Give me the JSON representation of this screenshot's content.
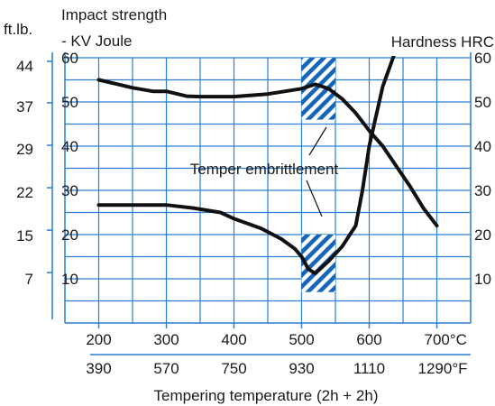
{
  "chart_data": {
    "type": "line",
    "xlabel": "Tempering temperature (2h + 2h)",
    "x_ticks_c": [
      "200",
      "300",
      "400",
      "500",
      "600",
      "700°C"
    ],
    "x_ticks_f": [
      "390",
      "570",
      "750",
      "930",
      "1110",
      "1290°F"
    ],
    "xlim_c": [
      150,
      750
    ],
    "left_axis": {
      "label_line1": "Impact strength",
      "label_line2": "- KV Joule",
      "unit_label": "ft.lb.",
      "ylim": [
        0,
        60
      ],
      "ticks_joule": [
        "60",
        "50",
        "40",
        "30",
        "20",
        "10"
      ],
      "ticks_ftlb": [
        "44",
        "37",
        "29",
        "22",
        "15",
        "7"
      ]
    },
    "right_axis": {
      "label": "Hardness HRC",
      "ylim": [
        0,
        60
      ],
      "ticks": [
        "60",
        "50",
        "40",
        "30",
        "20",
        "10"
      ]
    },
    "grid": true,
    "annotation": "Temper embrittlement",
    "embrittlement_zone_c": [
      500,
      550
    ],
    "series": [
      {
        "axis": "right",
        "color": "#111111",
        "points": [
          [
            200,
            55
          ],
          [
            250,
            53.2
          ],
          [
            280,
            52.4
          ],
          [
            300,
            52.4
          ],
          [
            330,
            51.3
          ],
          [
            350,
            51.2
          ],
          [
            400,
            51.2
          ],
          [
            450,
            51.8
          ],
          [
            500,
            53
          ],
          [
            520,
            54
          ],
          [
            540,
            53
          ],
          [
            560,
            50.7
          ],
          [
            580,
            47.5
          ],
          [
            600,
            43.5
          ],
          [
            620,
            40
          ],
          [
            640,
            35.5
          ],
          [
            660,
            31
          ],
          [
            680,
            26
          ],
          [
            700,
            22
          ]
        ]
      },
      {
        "axis": "left",
        "color": "#111111",
        "points": [
          [
            200,
            26.7
          ],
          [
            250,
            26.7
          ],
          [
            300,
            26.7
          ],
          [
            340,
            26
          ],
          [
            380,
            25
          ],
          [
            400,
            23.6
          ],
          [
            440,
            21.4
          ],
          [
            470,
            19
          ],
          [
            490,
            16.8
          ],
          [
            500,
            15
          ],
          [
            510,
            12.2
          ],
          [
            520,
            11.2
          ],
          [
            540,
            14
          ],
          [
            560,
            17.3
          ],
          [
            580,
            22
          ],
          [
            590,
            30
          ],
          [
            600,
            40
          ],
          [
            620,
            53.5
          ],
          [
            640,
            62
          ]
        ]
      }
    ]
  }
}
